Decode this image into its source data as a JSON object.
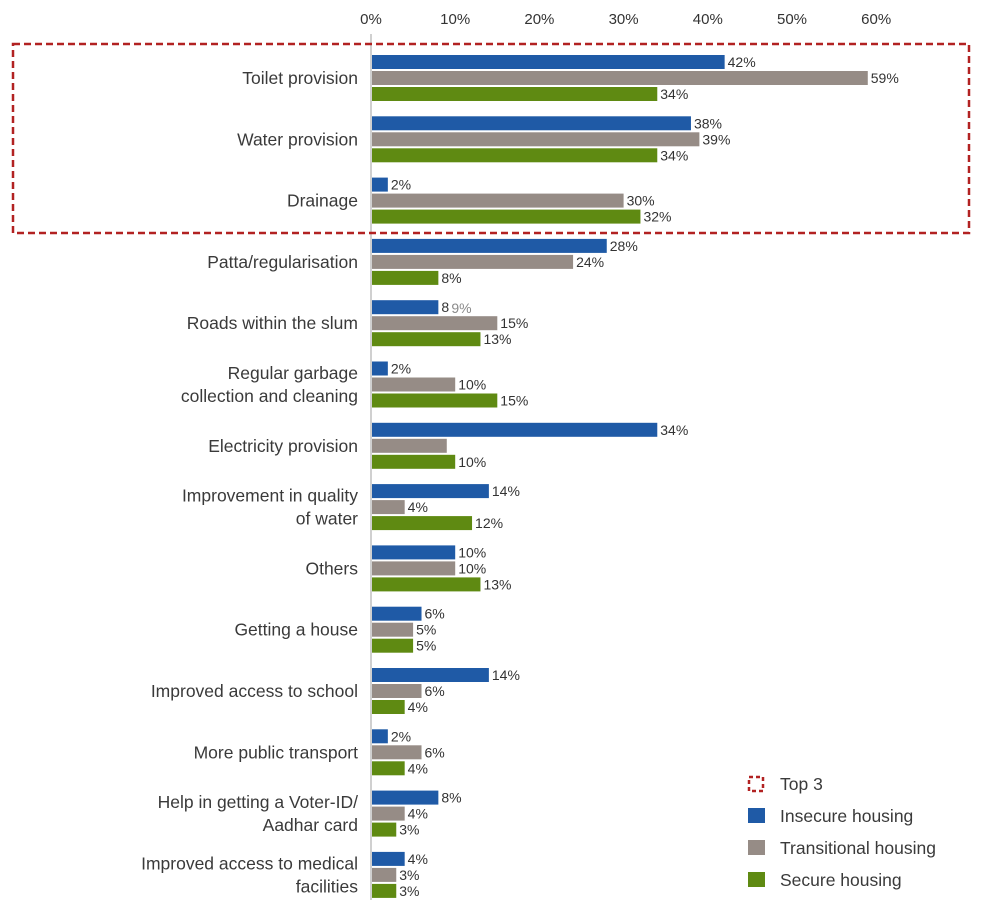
{
  "chart_data": {
    "type": "bar",
    "orientation": "horizontal",
    "xlim": [
      0,
      60
    ],
    "tick_values": [
      0,
      10,
      20,
      30,
      40,
      50,
      60
    ],
    "tick_labels": [
      "0%",
      "10%",
      "20%",
      "30%",
      "40%",
      "50%",
      "60%"
    ],
    "axis_position": "top",
    "grid": false,
    "legend_placement": "bottom-right",
    "highlight": {
      "name": "Top 3",
      "categories": [
        "Toilet provision",
        "Water provision",
        "Drainage"
      ],
      "color": "#b22222"
    },
    "categories": [
      [
        "Toilet provision"
      ],
      [
        "Water provision"
      ],
      [
        "Drainage"
      ],
      [
        "Patta/regularisation"
      ],
      [
        "Roads within the slum"
      ],
      [
        "Regular garbage",
        "collection and cleaning"
      ],
      [
        "Electricity provision"
      ],
      [
        "Improvement in quality",
        "of water"
      ],
      [
        "Others"
      ],
      [
        "Getting a house"
      ],
      [
        "Improved access to school"
      ],
      [
        "More public transport"
      ],
      [
        "Help in getting a Voter-ID/",
        "Aadhar card"
      ],
      [
        "Improved access to medical",
        "facilities"
      ]
    ],
    "series": [
      {
        "name": "Insecure housing",
        "color": "#1f5aa6",
        "values": [
          42,
          38,
          2,
          28,
          8,
          2,
          34,
          14,
          10,
          6,
          14,
          2,
          8,
          4
        ],
        "labels": [
          "42%",
          "38%",
          "2%",
          "28%",
          "8",
          "2%",
          "34%",
          "14%",
          "10%",
          "6%",
          "14%",
          "2%",
          "8%",
          "4%"
        ]
      },
      {
        "name": "Transitional housing",
        "color": "#968c86",
        "values": [
          59,
          39,
          30,
          24,
          15,
          10,
          9,
          4,
          10,
          5,
          6,
          6,
          4,
          3
        ],
        "labels": [
          "59%",
          "39%",
          "30%",
          "24%",
          "15%",
          "10%",
          "",
          "4%",
          "10%",
          "5%",
          "6%",
          "6%",
          "4%",
          "3%"
        ]
      },
      {
        "name": "Secure housing",
        "color": "#5f8a12",
        "values": [
          34,
          34,
          32,
          8,
          13,
          15,
          10,
          12,
          13,
          5,
          4,
          4,
          3,
          3
        ],
        "labels": [
          "34%",
          "34%",
          "32%",
          "8%",
          "13%",
          "15%",
          "10%",
          "12%",
          "13%",
          "5%",
          "4%",
          "4%",
          "3%",
          "3%"
        ]
      }
    ],
    "annotations": [
      {
        "text": "9%",
        "category_index": 4,
        "color": "#8a8a8a"
      }
    ],
    "legend": [
      "Top 3",
      "Insecure housing",
      "Transitional housing",
      "Secure housing"
    ]
  }
}
